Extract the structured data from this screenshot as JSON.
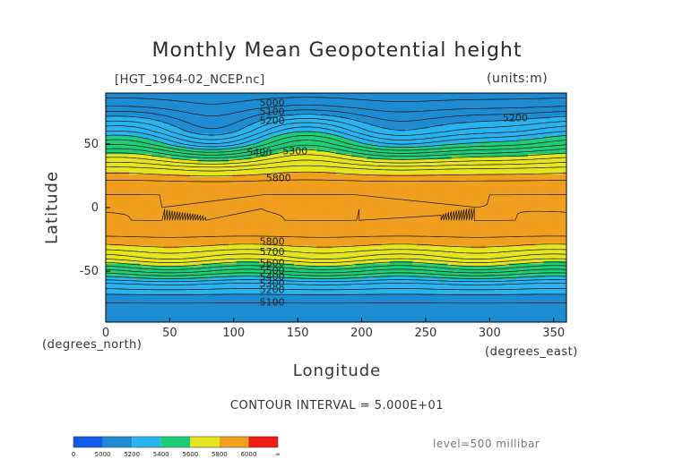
{
  "chart_data": {
    "type": "heatmap",
    "title": "Monthly Mean Geopotential height",
    "file_label": "[HGT_1964-02_NCEP.nc]",
    "units_label": "(units:m)",
    "xlabel": "Longitude",
    "ylabel": "Latitude",
    "x_unit_label": "(degrees_east)",
    "y_unit_label": "(degrees_north)",
    "contour_interval_text": "CONTOUR INTERVAL = 5.000E+01",
    "level_text": "level=500 millibar",
    "xlim": [
      0,
      360
    ],
    "ylim": [
      -90,
      90
    ],
    "x_ticks": [
      0,
      50,
      100,
      150,
      200,
      250,
      300,
      350
    ],
    "y_ticks": [
      -50,
      0,
      50
    ],
    "colorbar": {
      "levels": [
        0,
        5000,
        5200,
        5400,
        5600,
        5800,
        6000
      ],
      "tick_labels": [
        "0",
        "5000",
        "5200",
        "5400",
        "5600",
        "5800",
        "6000",
        "∞"
      ],
      "colors": [
        "#0f5ae6",
        "#1e8cd2",
        "#28b4f0",
        "#1ecd78",
        "#e6e61e",
        "#f0a01e",
        "#f01e14"
      ]
    },
    "zonal_profile": {
      "latitudes": [
        90,
        80,
        70,
        60,
        50,
        40,
        30,
        20,
        10,
        0,
        -10,
        -20,
        -30,
        -40,
        -50,
        -60,
        -70,
        -80,
        -90
      ],
      "values": [
        5020,
        5080,
        5180,
        5280,
        5420,
        5600,
        5760,
        5860,
        5900,
        5900,
        5900,
        5870,
        5800,
        5680,
        5500,
        5300,
        5180,
        5120,
        5100
      ]
    },
    "contour_labels": [
      {
        "text": "5000",
        "lon": 130,
        "lat": 82
      },
      {
        "text": "5100",
        "lon": 130,
        "lat": 75
      },
      {
        "text": "5200",
        "lon": 130,
        "lat": 68
      },
      {
        "text": "5300",
        "lon": 148,
        "lat": 44
      },
      {
        "text": "5400",
        "lon": 120,
        "lat": 43
      },
      {
        "text": "5200",
        "lon": 320,
        "lat": 70
      },
      {
        "text": "5800",
        "lon": 135,
        "lat": 23
      },
      {
        "text": "5800",
        "lon": 130,
        "lat": -27
      },
      {
        "text": "5700",
        "lon": 130,
        "lat": -35
      },
      {
        "text": "5600",
        "lon": 130,
        "lat": -44
      },
      {
        "text": "5500",
        "lon": 130,
        "lat": -50
      },
      {
        "text": "5400",
        "lon": 130,
        "lat": -55
      },
      {
        "text": "5300",
        "lon": 130,
        "lat": -60
      },
      {
        "text": "5200",
        "lon": 130,
        "lat": -65
      },
      {
        "text": "5100",
        "lon": 130,
        "lat": -75
      }
    ]
  }
}
